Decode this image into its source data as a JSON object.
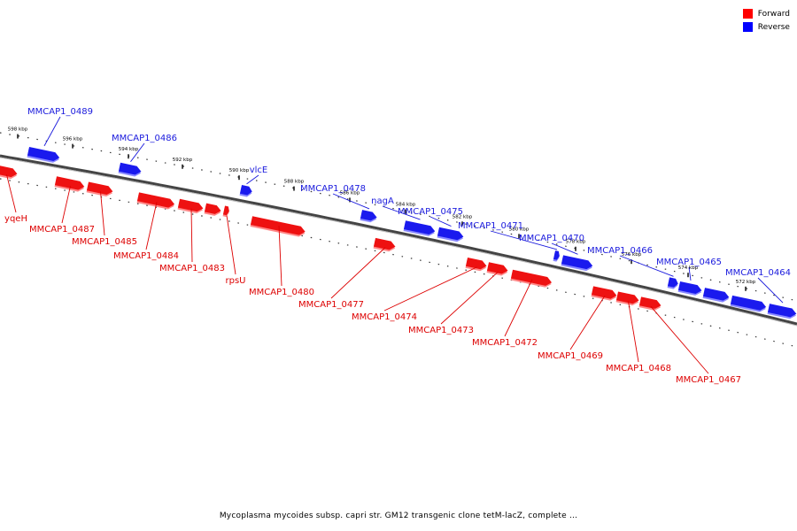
{
  "caption": "Mycoplasma mycoides subsp. capri str. GM12 transgenic clone tetM-lacZ, complete ...",
  "legend": {
    "forward_label": "Forward",
    "reverse_label": "Reverse",
    "forward_color": "#ff0000",
    "reverse_color": "#0000ff"
  },
  "colors": {
    "forward_fill": "#ee1111",
    "forward_shade": "#ff8888",
    "forward_text": "#dd0000",
    "reverse_fill": "#1a1aee",
    "reverse_shade": "#8888ff",
    "reverse_text": "#1a1add",
    "backbone": "#777777"
  },
  "ticks": [
    "598 kbp",
    "596 kbp",
    "594 kbp",
    "592 kbp",
    "590 kbp",
    "588 kbp",
    "586 kbp",
    "584 kbp",
    "582 kbp",
    "580 kbp",
    "578 kbp",
    "576 kbp",
    "574 kbp",
    "572 kbp"
  ],
  "forward_labels": [
    "yqeH",
    "MMCAP1_0487",
    "MMCAP1_0485",
    "MMCAP1_0484",
    "MMCAP1_0483",
    "rpsU",
    "MMCAP1_0480",
    "MMCAP1_0477",
    "MMCAP1_0474",
    "MMCAP1_0473",
    "MMCAP1_0472",
    "MMCAP1_0469",
    "MMCAP1_0468",
    "MMCAP1_0467"
  ],
  "reverse_labels": [
    "MMCAP1_0489",
    "MMCAP1_0486",
    "vlcE",
    "MMCAP1_0478",
    "nagA",
    "MMCAP1_0475",
    "MMCAP1_0471",
    "MMCAP1_0470",
    "MMCAP1_0466",
    "MMCAP1_0465",
    "MMCAP1_0464"
  ]
}
